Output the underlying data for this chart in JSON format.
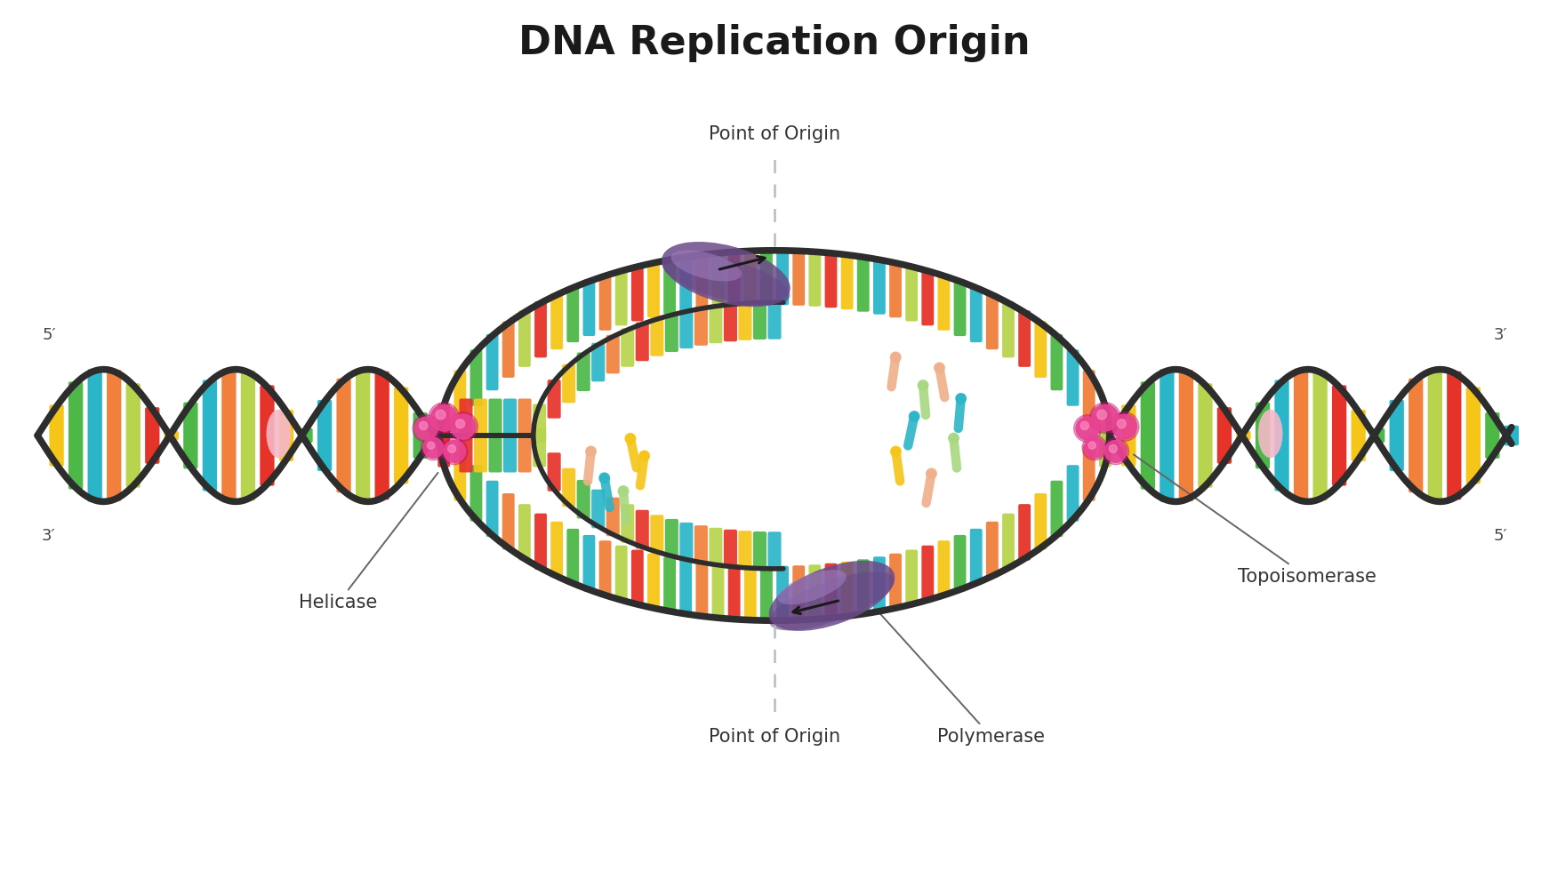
{
  "title": "DNA Replication Origin",
  "title_fontsize": 32,
  "title_fontweight": "bold",
  "bg_color": "#ffffff",
  "dna_strand_color": "#2d2d2d",
  "dna_strand_lw": 5.5,
  "base_colors": [
    "#e63329",
    "#f5c518",
    "#4db848",
    "#2bb5c8",
    "#f0803c",
    "#b8d44e"
  ],
  "helicase_color": "#e84393",
  "polymerase_color_dark": "#6b4a8a",
  "polymerase_color_light": "#a07ec0",
  "topoisomerase_color": "#e84393",
  "dashed_line_color": "#bbbbbb",
  "annotation_color": "#333333",
  "nucleotide_colors": [
    "#f0a070",
    "#a0c860",
    "#2bb5c8",
    "#f0803c",
    "#f5c518",
    "#e63329",
    "#4db848",
    "#2bb5c8"
  ],
  "labels": {
    "point_of_origin_top": "Point of Origin",
    "point_of_origin_bottom": "Point of Origin",
    "helicase": "Helicase",
    "polymerase": "Polymerase",
    "topoisomerase": "Topoisomerase",
    "five_prime_left": "5′",
    "three_prime_left": "3′",
    "three_prime_right": "3′",
    "five_prime_right": "5′"
  }
}
